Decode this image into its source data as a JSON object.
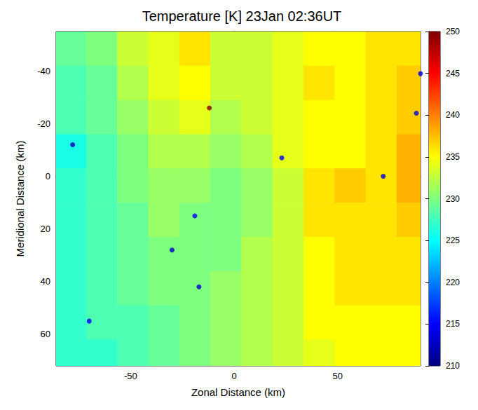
{
  "chart_data": {
    "type": "heatmap",
    "title": "Temperature [K] 23Jan 02:36UT",
    "x_label": "Zonal Distance (km)",
    "y_label": "Meridional Distance (km)",
    "x": [
      -79,
      -64,
      -49,
      -34,
      -19,
      -4,
      11,
      26,
      41,
      56,
      71,
      86
    ],
    "y": [
      -48.5,
      -35.5,
      -22.5,
      -9.5,
      3.5,
      16.5,
      29.5,
      42.5,
      55.5,
      68.5
    ],
    "values": [
      [
        229,
        230,
        233,
        234,
        236,
        233,
        233,
        234,
        235,
        235,
        236,
        236
      ],
      [
        228,
        229,
        232,
        234,
        235,
        233,
        233,
        234,
        236,
        235,
        236,
        237
      ],
      [
        228,
        229,
        231,
        233,
        234,
        232,
        233,
        234,
        235,
        235,
        236,
        237
      ],
      [
        226,
        228,
        230,
        232,
        232,
        231,
        232,
        234,
        235,
        235,
        236,
        238
      ],
      [
        227,
        228,
        230,
        231,
        231,
        230,
        231,
        233,
        236,
        237,
        236,
        238
      ],
      [
        227,
        228,
        229,
        231,
        230,
        230,
        231,
        233,
        236,
        236,
        236,
        237
      ],
      [
        227,
        228,
        229,
        230,
        230,
        230,
        232,
        233,
        235,
        236,
        236,
        236
      ],
      [
        227,
        228,
        229,
        230,
        230,
        231,
        232,
        233,
        235,
        236,
        236,
        236
      ],
      [
        227,
        228,
        228,
        229,
        230,
        231,
        232,
        233,
        235,
        235,
        235,
        235
      ],
      [
        227,
        227,
        228,
        229,
        230,
        231,
        232,
        233,
        234,
        235,
        235,
        235
      ]
    ],
    "spots": {
      "x": [
        -78,
        -70,
        -30,
        -17,
        -19,
        23,
        72,
        88,
        90,
        -12
      ],
      "y": [
        -12,
        55,
        28,
        42,
        15,
        -7,
        0,
        -24,
        -39,
        -26
      ],
      "values": [
        212,
        215,
        213,
        213,
        215,
        215,
        213,
        214,
        214,
        250
      ]
    },
    "xlim": [
      -86,
      90
    ],
    "ylim": [
      -55,
      72
    ],
    "xticks": [
      -50,
      0,
      50
    ],
    "yticks": [
      -40,
      -20,
      0,
      20,
      40,
      60
    ],
    "colorbar_lim": [
      210,
      250
    ],
    "colorbar_ticks": [
      210,
      215,
      220,
      225,
      230,
      235,
      240,
      245,
      250
    ]
  }
}
